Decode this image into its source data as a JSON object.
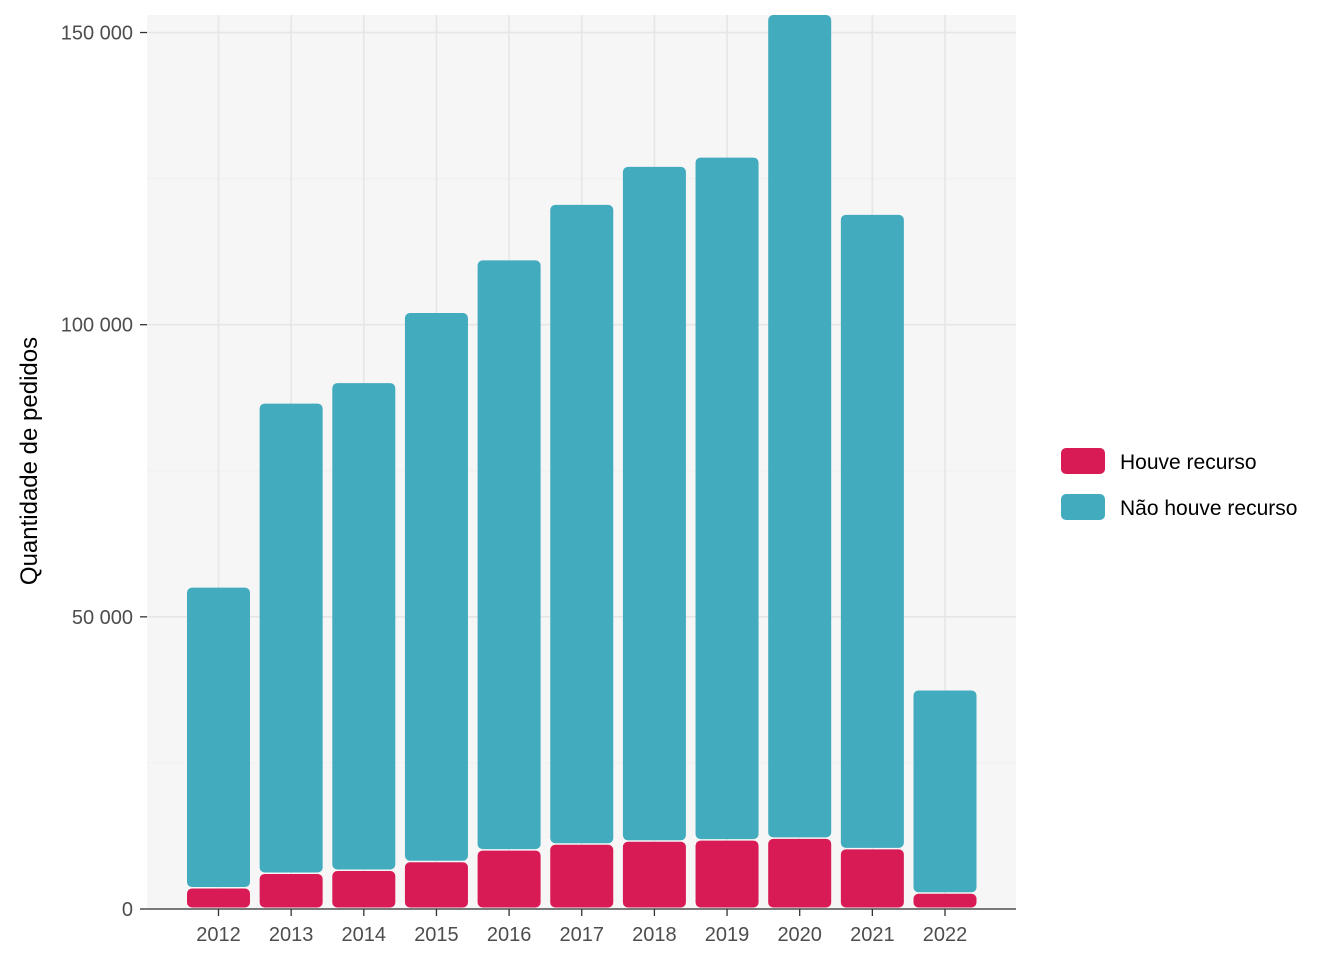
{
  "chart_data": {
    "type": "bar",
    "stacked": true,
    "categories": [
      "2012",
      "2013",
      "2014",
      "2015",
      "2016",
      "2017",
      "2018",
      "2019",
      "2020",
      "2021",
      "2022"
    ],
    "series": [
      {
        "name": "Houve recurso",
        "color": "#D81B55",
        "values": [
          3500,
          6000,
          6500,
          8000,
          10000,
          11000,
          11500,
          11700,
          12000,
          10200,
          2600
        ]
      },
      {
        "name": "Não houve recurso",
        "color": "#42ABBE",
        "values": [
          51500,
          80500,
          83500,
          94000,
          101000,
          109500,
          115500,
          116900,
          141000,
          108600,
          34800
        ]
      }
    ],
    "xlabel": "",
    "ylabel": "Quantidade de pedidos",
    "yticks": [
      0,
      50000,
      100000,
      150000
    ],
    "ytick_labels": [
      "0",
      "50 000",
      "100 000",
      "150 000"
    ],
    "ylim": [
      0,
      153000
    ],
    "grid": true,
    "panel_background": "#F6F6F6",
    "legend_position": "right"
  }
}
